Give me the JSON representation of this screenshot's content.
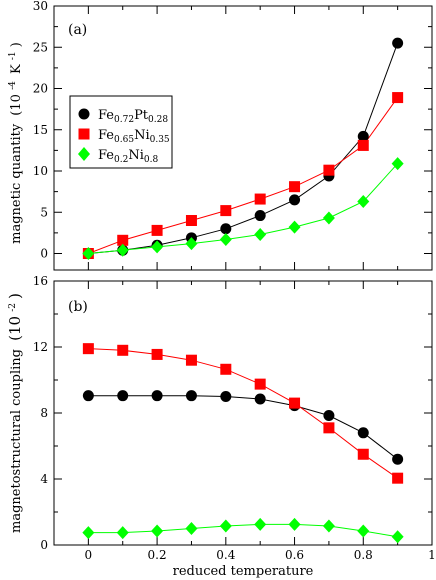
{
  "chart_data": [
    {
      "type": "line",
      "panel_label": "(a)",
      "ylabel_main": "magnetic quantity",
      "ylabel_unit_base": "(10",
      "ylabel_unit_exp": "-4",
      "ylabel_unit_mid": "K",
      "ylabel_unit_exp2": "-1",
      "ylabel_unit_close": ")",
      "xlim": [
        -0.1,
        1.0
      ],
      "ylim": [
        -2,
        30
      ],
      "yticks": [
        "0",
        "5",
        "10",
        "15",
        "20",
        "25",
        "30"
      ],
      "x": [
        0,
        0.1,
        0.2,
        0.3,
        0.4,
        0.5,
        0.6,
        0.7,
        0.8,
        0.9
      ],
      "series": [
        {
          "name_base": "Fe",
          "name_sub1": "0.72",
          "name_mid": "Pt",
          "name_sub2": "0.28",
          "marker": "circle",
          "color": "#000000",
          "values": [
            0,
            0.4,
            1.0,
            1.9,
            3.0,
            4.6,
            6.5,
            9.4,
            14.2,
            25.5
          ]
        },
        {
          "name_base": "Fe",
          "name_sub1": "0.65",
          "name_mid": "Ni",
          "name_sub2": "0.35",
          "marker": "square",
          "color": "#ff0000",
          "values": [
            0,
            1.6,
            2.8,
            4.0,
            5.2,
            6.6,
            8.1,
            10.1,
            13.1,
            18.9
          ]
        },
        {
          "name_base": "Fe",
          "name_sub1": "0.2",
          "name_mid": "Ni",
          "name_sub2": "0.8",
          "marker": "diamond",
          "color": "#00ff00",
          "values": [
            0,
            0.4,
            0.8,
            1.2,
            1.7,
            2.3,
            3.2,
            4.3,
            6.3,
            10.9
          ]
        }
      ]
    },
    {
      "type": "line",
      "panel_label": "(b)",
      "xlabel": "reduced temperature",
      "ylabel_main": "magnetostructural coupling",
      "ylabel_unit_base": "(10",
      "ylabel_unit_exp": "-2",
      "ylabel_unit_close": ")",
      "xlim": [
        -0.1,
        1.0
      ],
      "ylim": [
        0,
        16
      ],
      "xticks": [
        "0",
        "0.2",
        "0.4",
        "0.6",
        "0.8",
        "1"
      ],
      "yticks": [
        "0",
        "4",
        "8",
        "12",
        "16"
      ],
      "x": [
        0,
        0.1,
        0.2,
        0.3,
        0.4,
        0.5,
        0.6,
        0.7,
        0.8,
        0.9
      ],
      "series": [
        {
          "marker": "circle",
          "color": "#000000",
          "values": [
            9.05,
            9.05,
            9.05,
            9.05,
            9.0,
            8.85,
            8.45,
            7.85,
            6.8,
            5.2
          ]
        },
        {
          "marker": "square",
          "color": "#ff0000",
          "values": [
            11.9,
            11.8,
            11.55,
            11.2,
            10.65,
            9.75,
            8.6,
            7.1,
            5.5,
            4.05
          ]
        },
        {
          "marker": "diamond",
          "color": "#00ff00",
          "values": [
            0.75,
            0.75,
            0.85,
            1.0,
            1.15,
            1.25,
            1.25,
            1.15,
            0.85,
            0.5
          ]
        }
      ]
    }
  ]
}
